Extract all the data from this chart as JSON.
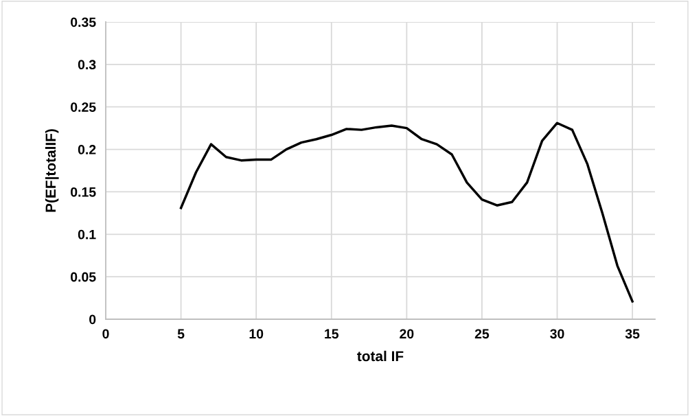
{
  "chart_data": {
    "type": "line",
    "xlabel": "total IF",
    "ylabel": "P(EF|totalIF)",
    "x": [
      5,
      6,
      7,
      8,
      9,
      10,
      11,
      12,
      13,
      14,
      15,
      16,
      17,
      18,
      19,
      20,
      21,
      22,
      23,
      24,
      25,
      26,
      27,
      28,
      29,
      30,
      31,
      32,
      33,
      34,
      35
    ],
    "series": [
      {
        "color": "#000000",
        "values": [
          0.131,
          0.173,
          0.206,
          0.191,
          0.187,
          0.188,
          0.188,
          0.2,
          0.208,
          0.212,
          0.217,
          0.224,
          0.223,
          0.226,
          0.228,
          0.225,
          0.212,
          0.206,
          0.194,
          0.161,
          0.141,
          0.134,
          0.138,
          0.161,
          0.21,
          0.231,
          0.223,
          0.183,
          0.125,
          0.063,
          0.021
        ]
      }
    ],
    "xlim": [
      0,
      36.5
    ],
    "xticks": [
      0,
      5,
      10,
      15,
      20,
      25,
      30,
      35
    ],
    "ylim": [
      0,
      0.35
    ],
    "yticks": [
      0,
      0.05,
      0.1,
      0.15,
      0.2,
      0.25,
      0.3,
      0.35
    ],
    "grid": true,
    "marker": "none",
    "line_style": "solid"
  }
}
